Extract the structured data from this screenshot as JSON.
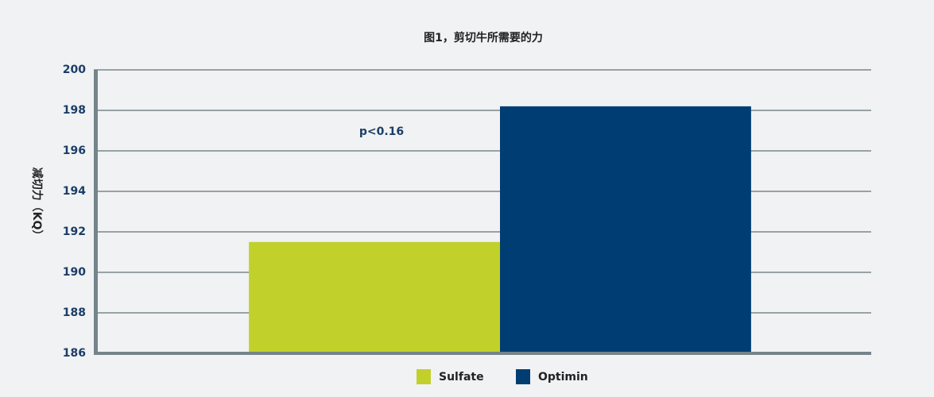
{
  "chart_data": {
    "type": "bar",
    "title": "图1，剪切牛所需要的力",
    "y_label": "减切力（KQ）",
    "annotation": "p<0.16",
    "categories": [
      null
    ],
    "series": [
      {
        "name": "Sulfate",
        "color": "#c2d02b",
        "values": [
          191.5
        ]
      },
      {
        "name": "Optimin",
        "color": "#003d73",
        "values": [
          198.2
        ]
      }
    ],
    "ylim": [
      186,
      200
    ],
    "yticks": [
      186,
      188,
      190,
      192,
      194,
      196,
      198,
      200
    ],
    "grid": true
  }
}
